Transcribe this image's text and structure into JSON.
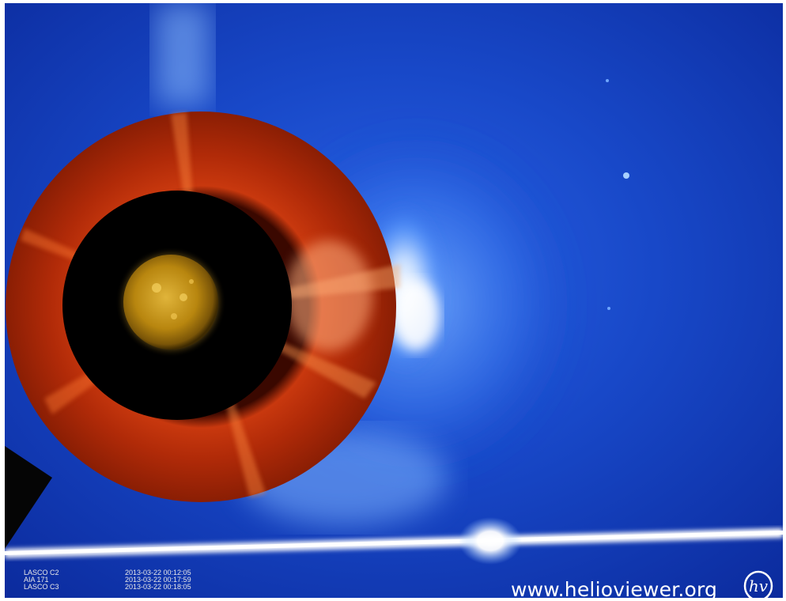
{
  "image": {
    "description_colors": {
      "background_blue": "#0a2b9a",
      "corona_white": "#ffffff",
      "c2_red": "#b32a0a",
      "sun_gold": "#c99a18"
    }
  },
  "overlay": {
    "layers": [
      {
        "instrument": "LASCO C2",
        "timestamp": "2013-03-22 00:12:05"
      },
      {
        "instrument": "AIA 171",
        "timestamp": "2013-03-22 00:17:59"
      },
      {
        "instrument": "LASCO C3",
        "timestamp": "2013-03-22 00:18:05"
      }
    ],
    "watermark_url": "www.helioviewer.org",
    "logo_text": "hv"
  }
}
